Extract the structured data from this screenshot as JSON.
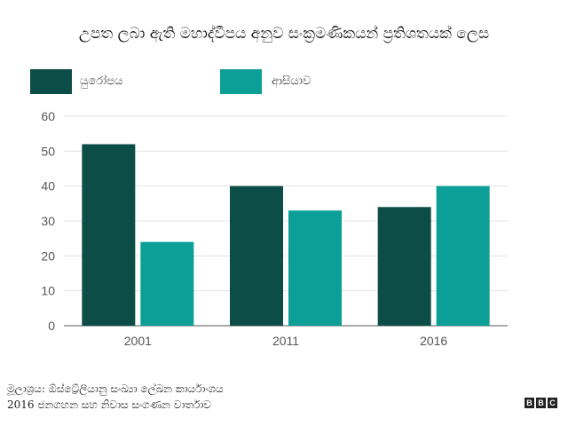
{
  "chart_data": {
    "type": "bar",
    "title": "උපත ලබා ඇති මහාද්වීපය අනුව සංක්‍රමණිකයන් ප්‍රතිශතයක් ලෙස",
    "categories": [
      "2001",
      "2011",
      "2016"
    ],
    "series": [
      {
        "name": "යුරෝපය",
        "values": [
          52,
          40,
          34
        ],
        "color": "#0d4d47"
      },
      {
        "name": "ආසියාව",
        "values": [
          24,
          33,
          40
        ],
        "color": "#0c9f98"
      }
    ],
    "yticks": [
      "0",
      "10",
      "20",
      "30",
      "40",
      "50",
      "60"
    ],
    "ylim": [
      0,
      60
    ],
    "xlabel": "",
    "ylabel": "",
    "grid": true,
    "legend_position": "top-left"
  },
  "source": {
    "line1": "මූලාශ්‍රය: ඕස්ට්‍රේලියානු සංඛ්‍යා ලේඛන කාර්යාංශය",
    "line2": "2016 ජනගහන සහ නිවාස සංගණන වාර්තාව"
  },
  "logo": {
    "letters": [
      "B",
      "B",
      "C"
    ]
  }
}
